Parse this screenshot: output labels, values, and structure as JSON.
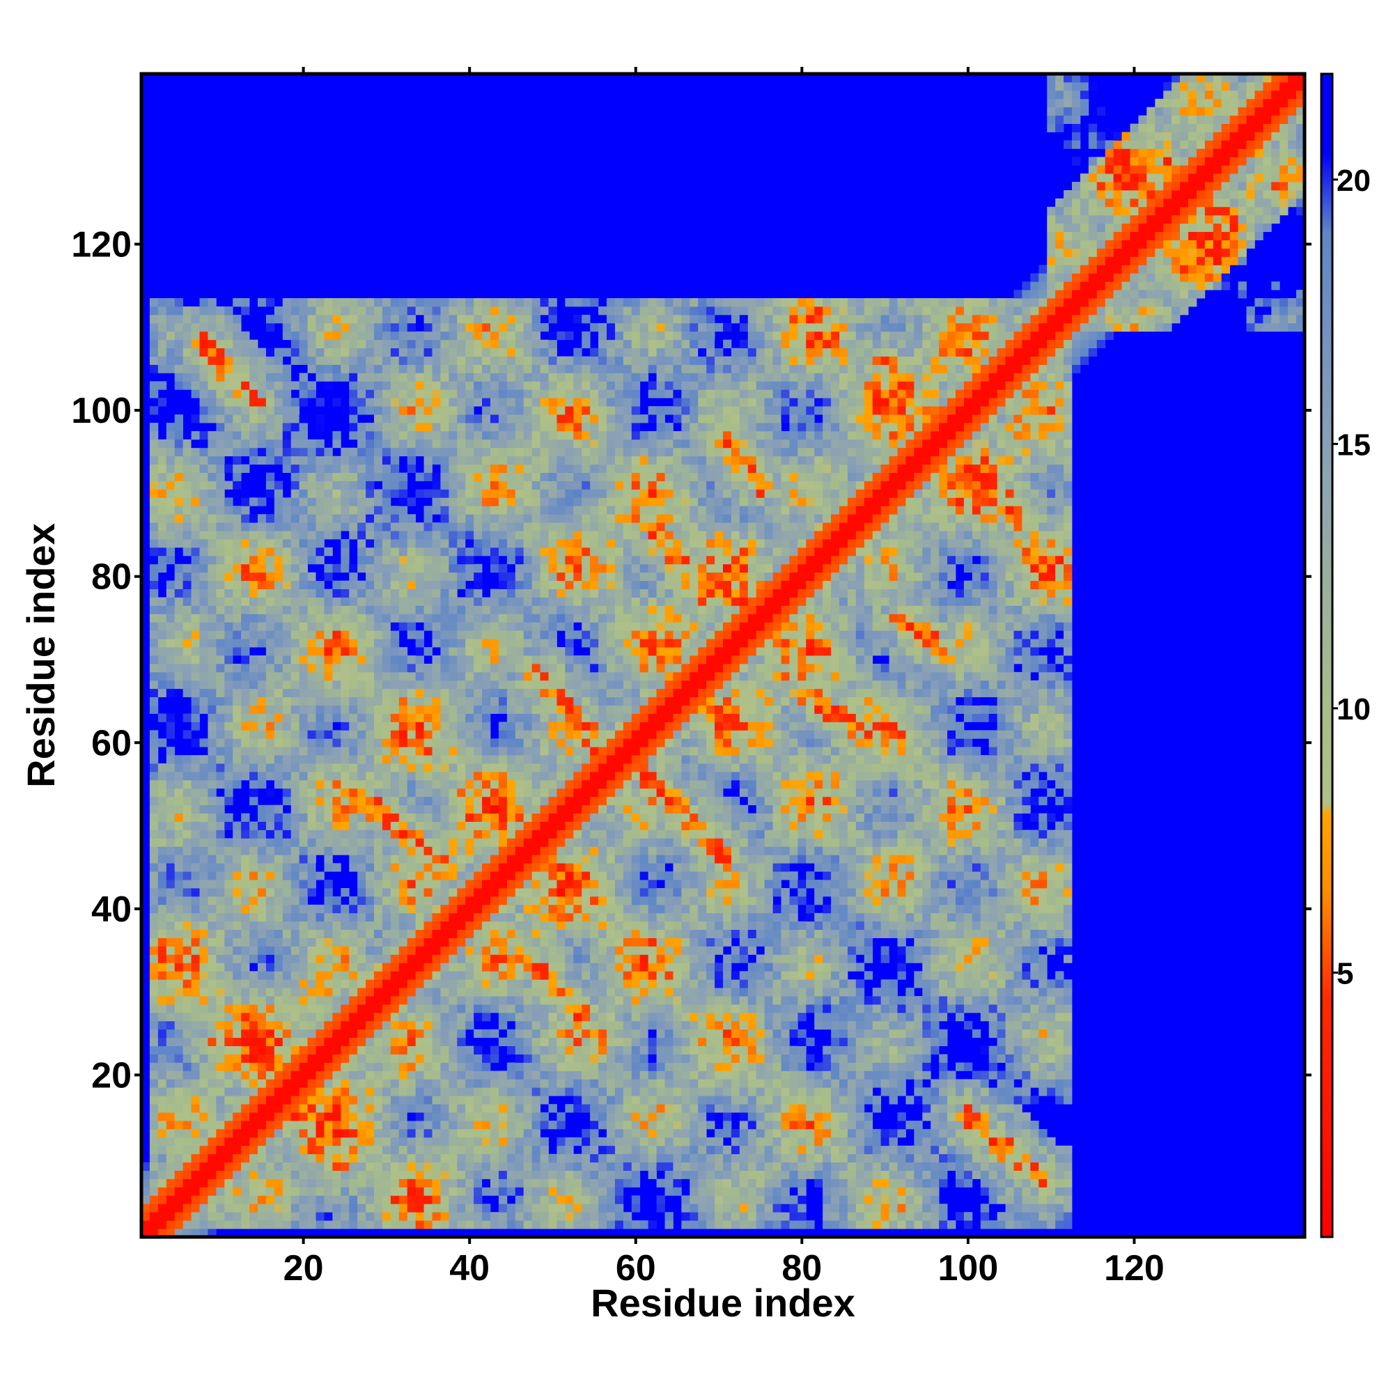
{
  "chart_data": {
    "type": "heatmap",
    "title": "",
    "xlabel": "Residue index",
    "ylabel": "Residue index",
    "xlim": [
      1,
      140
    ],
    "ylim": [
      1,
      140
    ],
    "x_ticks": [
      20,
      40,
      60,
      80,
      100,
      120
    ],
    "y_ticks": [
      20,
      40,
      60,
      80,
      100,
      120
    ],
    "x_tick_labels": [
      "20",
      "40",
      "60",
      "80",
      "100",
      "120"
    ],
    "y_tick_labels": [
      "20",
      "40",
      "60",
      "80",
      "100",
      "120"
    ],
    "colorbar": {
      "range": [
        0,
        22
      ],
      "ticks": [
        5,
        10,
        15,
        20
      ],
      "tick_labels": [
        "5",
        "10",
        "15",
        "20"
      ],
      "colors": [
        {
          "value": 0,
          "color": "#ff0000"
        },
        {
          "value": 4.5,
          "color": "#ff2a00"
        },
        {
          "value": 6.5,
          "color": "#ff8c00"
        },
        {
          "value": 8.0,
          "color": "#ffa500"
        },
        {
          "value": 8.2,
          "color": "#b0c08a"
        },
        {
          "value": 10,
          "color": "#a8bd8a"
        },
        {
          "value": 15,
          "color": "#8aa0b6"
        },
        {
          "value": 19,
          "color": "#5f86c7"
        },
        {
          "value": 20.5,
          "color": "#0000ff"
        }
      ]
    },
    "grid": false,
    "description_of_values": "Residue-residue distance map; diagonal near 0 (red), contacts < 8 (orange), medium 8-20 (sage to steel), > 20 blue",
    "features": {
      "diagonal": [
        [
          1,
          140
        ]
      ],
      "contact_bands": [
        {
          "from": [
            10,
            24
          ],
          "to": [
            17,
            17
          ]
        },
        {
          "from": [
            8,
            108
          ],
          "to": [
            14,
            101
          ]
        },
        {
          "from": [
            19,
            15
          ],
          "to": [
            24,
            9
          ]
        },
        {
          "from": [
            25,
            55
          ],
          "to": [
            37,
            45
          ]
        },
        {
          "from": [
            47,
            34
          ],
          "to": [
            56,
            24
          ]
        },
        {
          "from": [
            48,
            68
          ],
          "to": [
            57,
            58
          ]
        },
        {
          "from": [
            60,
            57
          ],
          "to": [
            71,
            46
          ]
        },
        {
          "from": [
            61,
            87
          ],
          "to": [
            68,
            78
          ]
        },
        {
          "from": [
            71,
            96
          ],
          "to": [
            75,
            91
          ]
        },
        {
          "from": [
            72,
            78
          ],
          "to": [
            79,
            71
          ]
        },
        {
          "from": [
            80,
            66
          ],
          "to": [
            86,
            62
          ]
        },
        {
          "from": [
            90,
            106
          ],
          "to": [
            96,
            98
          ]
        },
        {
          "from": [
            92,
            75
          ],
          "to": [
            97,
            71
          ]
        },
        {
          "from": [
            100,
            15
          ],
          "to": [
            109,
            7
          ]
        },
        {
          "from": [
            101,
            94
          ],
          "to": [
            106,
            87
          ]
        },
        {
          "from": [
            124,
            130
          ],
          "to": [
            132,
            122
          ]
        }
      ],
      "blocks": [
        {
          "x": [
            2,
            112
          ],
          "y": [
            2,
            113
          ]
        },
        {
          "x": [
            112,
            140
          ],
          "y": [
            112,
            140
          ]
        }
      ]
    }
  }
}
